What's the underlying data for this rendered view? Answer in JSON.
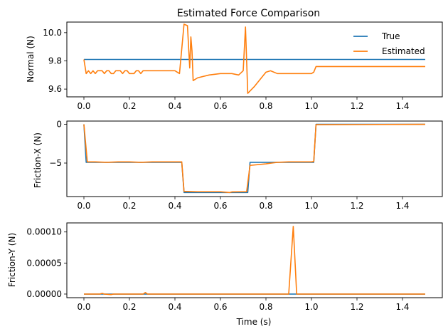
{
  "chart_data": [
    {
      "type": "line",
      "title": "Estimated Force Comparison",
      "xlabel": "",
      "ylabel": "Normal (N)",
      "xlim": [
        -0.075,
        1.575
      ],
      "ylim": [
        9.545,
        10.075
      ],
      "xticks": [
        0.0,
        0.2,
        0.4,
        0.6,
        0.8,
        1.0,
        1.2,
        1.4
      ],
      "xtick_labels": [
        "0.0",
        "0.2",
        "0.4",
        "0.6",
        "0.8",
        "1.0",
        "1.2",
        "1.4"
      ],
      "yticks": [
        9.6,
        9.8,
        10.0
      ],
      "ytick_labels": [
        "9.6",
        "9.8",
        "10.0"
      ],
      "grid": false,
      "legend": "upper right",
      "series": [
        {
          "name": "True",
          "color": "#1f77b4",
          "x": [
            0.0,
            1.5
          ],
          "y": [
            9.81,
            9.81
          ]
        },
        {
          "name": "Estimated",
          "color": "#ff7f0e",
          "x": [
            0.0,
            0.01,
            0.02,
            0.03,
            0.04,
            0.05,
            0.06,
            0.07,
            0.08,
            0.09,
            0.1,
            0.11,
            0.12,
            0.13,
            0.14,
            0.15,
            0.16,
            0.17,
            0.18,
            0.19,
            0.2,
            0.21,
            0.22,
            0.23,
            0.24,
            0.25,
            0.26,
            0.27,
            0.28,
            0.29,
            0.3,
            0.35,
            0.4,
            0.42,
            0.44,
            0.455,
            0.465,
            0.47,
            0.475,
            0.48,
            0.49,
            0.5,
            0.55,
            0.6,
            0.65,
            0.68,
            0.7,
            0.71,
            0.72,
            0.75,
            0.78,
            0.8,
            0.82,
            0.85,
            0.9,
            0.95,
            1.0,
            1.01,
            1.02,
            1.5
          ],
          "y": [
            9.81,
            9.71,
            9.73,
            9.71,
            9.73,
            9.71,
            9.73,
            9.73,
            9.73,
            9.71,
            9.73,
            9.73,
            9.71,
            9.71,
            9.73,
            9.73,
            9.73,
            9.71,
            9.73,
            9.73,
            9.71,
            9.71,
            9.71,
            9.73,
            9.73,
            9.71,
            9.73,
            9.73,
            9.73,
            9.73,
            9.73,
            9.73,
            9.73,
            9.71,
            10.06,
            10.05,
            9.75,
            9.97,
            9.87,
            9.66,
            9.67,
            9.68,
            9.7,
            9.71,
            9.71,
            9.7,
            9.73,
            10.04,
            9.57,
            9.62,
            9.68,
            9.72,
            9.73,
            9.71,
            9.71,
            9.71,
            9.71,
            9.72,
            9.76,
            9.76
          ]
        }
      ]
    },
    {
      "type": "line",
      "title": "",
      "xlabel": "",
      "ylabel": "Friction-X (N)",
      "xlim": [
        -0.075,
        1.575
      ],
      "ylim": [
        -9.32,
        0.42
      ],
      "xticks": [
        0.0,
        0.2,
        0.4,
        0.6,
        0.8,
        1.0,
        1.2,
        1.4
      ],
      "xtick_labels": [
        "0.0",
        "0.2",
        "0.4",
        "0.6",
        "0.8",
        "1.0",
        "1.2",
        "1.4"
      ],
      "yticks": [
        -5,
        0
      ],
      "ytick_labels": [
        "−5",
        "0"
      ],
      "grid": false,
      "series": [
        {
          "name": "True",
          "color": "#1f77b4",
          "x": [
            0.0,
            0.01,
            0.43,
            0.44,
            0.72,
            0.73,
            1.01,
            1.02,
            1.5
          ],
          "y": [
            0.0,
            -4.9,
            -4.9,
            -8.8,
            -8.8,
            -4.9,
            -4.9,
            0.0,
            0.0
          ]
        },
        {
          "name": "Estimated",
          "color": "#ff7f0e",
          "x": [
            0.0,
            0.015,
            0.05,
            0.1,
            0.15,
            0.2,
            0.25,
            0.3,
            0.35,
            0.4,
            0.43,
            0.44,
            0.5,
            0.55,
            0.6,
            0.64,
            0.65,
            0.7,
            0.715,
            0.73,
            0.8,
            0.85,
            0.9,
            0.95,
            1.0,
            1.01,
            1.02,
            1.5
          ],
          "y": [
            0.0,
            -4.85,
            -4.85,
            -4.9,
            -4.85,
            -4.85,
            -4.9,
            -4.85,
            -4.85,
            -4.85,
            -4.85,
            -8.65,
            -8.7,
            -8.7,
            -8.7,
            -8.8,
            -8.72,
            -8.7,
            -8.7,
            -5.3,
            -5.1,
            -4.9,
            -4.85,
            -4.85,
            -4.85,
            -4.8,
            -0.05,
            0.0
          ]
        }
      ]
    },
    {
      "type": "line",
      "title": "",
      "xlabel": "Time (s)",
      "ylabel": "Friction-Y (N)",
      "xlim": [
        -0.075,
        1.575
      ],
      "ylim": [
        -5.8e-06,
        0.0001146
      ],
      "xticks": [
        0.0,
        0.2,
        0.4,
        0.6,
        0.8,
        1.0,
        1.2,
        1.4
      ],
      "xtick_labels": [
        "0.0",
        "0.2",
        "0.4",
        "0.6",
        "0.8",
        "1.0",
        "1.2",
        "1.4"
      ],
      "yticks": [
        0.0,
        5e-05,
        0.0001
      ],
      "ytick_labels": [
        "0.00000",
        "0.00005",
        "0.00010"
      ],
      "grid": false,
      "series": [
        {
          "name": "True",
          "color": "#1f77b4",
          "x": [
            0.0,
            1.5
          ],
          "y": [
            0.0,
            0.0
          ]
        },
        {
          "name": "Estimated",
          "color": "#ff7f0e",
          "x": [
            0.0,
            0.07,
            0.08,
            0.09,
            0.12,
            0.13,
            0.26,
            0.27,
            0.28,
            0.9,
            0.92,
            0.935,
            1.5
          ],
          "y": [
            0.0,
            0.0,
            1.2e-06,
            0.0,
            -8e-07,
            0.0,
            0.0,
            2.5e-06,
            0.0,
            0.0,
            0.000109,
            0.0,
            0.0
          ]
        }
      ]
    }
  ]
}
